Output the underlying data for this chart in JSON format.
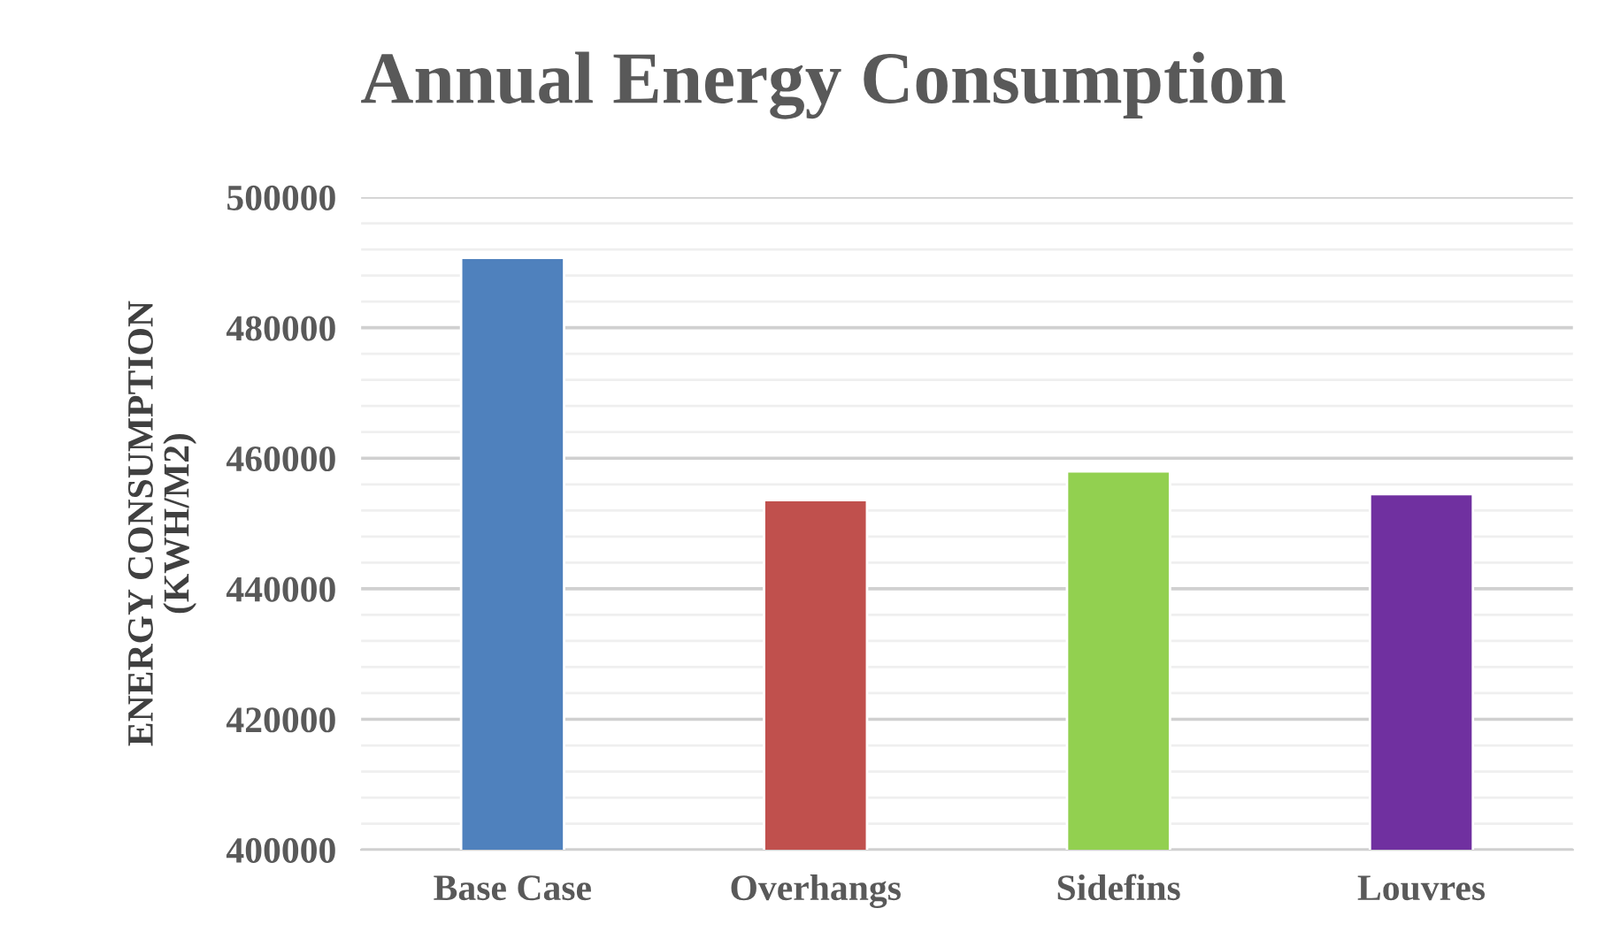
{
  "chart_data": {
    "type": "bar",
    "title": "Annual Energy Consumption",
    "ylabel": "ENERGY CONSUMPTION\n(KWH/M2)",
    "categories": [
      "Base Case",
      "Overhangs",
      "Sidefins",
      "Louvres"
    ],
    "values": [
      490700,
      453600,
      458000,
      454500
    ],
    "colors": [
      "#4f81bd",
      "#c0504d",
      "#92d050",
      "#7030a0"
    ],
    "ylim": [
      400000,
      500000
    ],
    "yticks": [
      400000,
      {
        "value": 404000,
        "label": null
      },
      {
        "value": 408000,
        "label": null
      },
      {
        "value": 412000,
        "label": null
      },
      {
        "value": 416000,
        "label": null
      },
      420000,
      {
        "value": 424000,
        "label": null
      },
      {
        "value": 428000,
        "label": null
      },
      {
        "value": 432000,
        "label": null
      },
      {
        "value": 436000,
        "label": null
      },
      440000,
      {
        "value": 444000,
        "label": null
      },
      {
        "value": 448000,
        "label": null
      },
      {
        "value": 452000,
        "label": null
      },
      {
        "value": 456000,
        "label": null
      },
      460000,
      {
        "value": 464000,
        "label": null
      },
      {
        "value": 468000,
        "label": null
      },
      {
        "value": 472000,
        "label": null
      },
      {
        "value": 476000,
        "label": null
      },
      480000,
      {
        "value": 484000,
        "label": null
      },
      {
        "value": 488000,
        "label": null
      },
      {
        "value": 492000,
        "label": null
      },
      {
        "value": 496000,
        "label": null
      },
      500000
    ],
    "grid": "y"
  }
}
